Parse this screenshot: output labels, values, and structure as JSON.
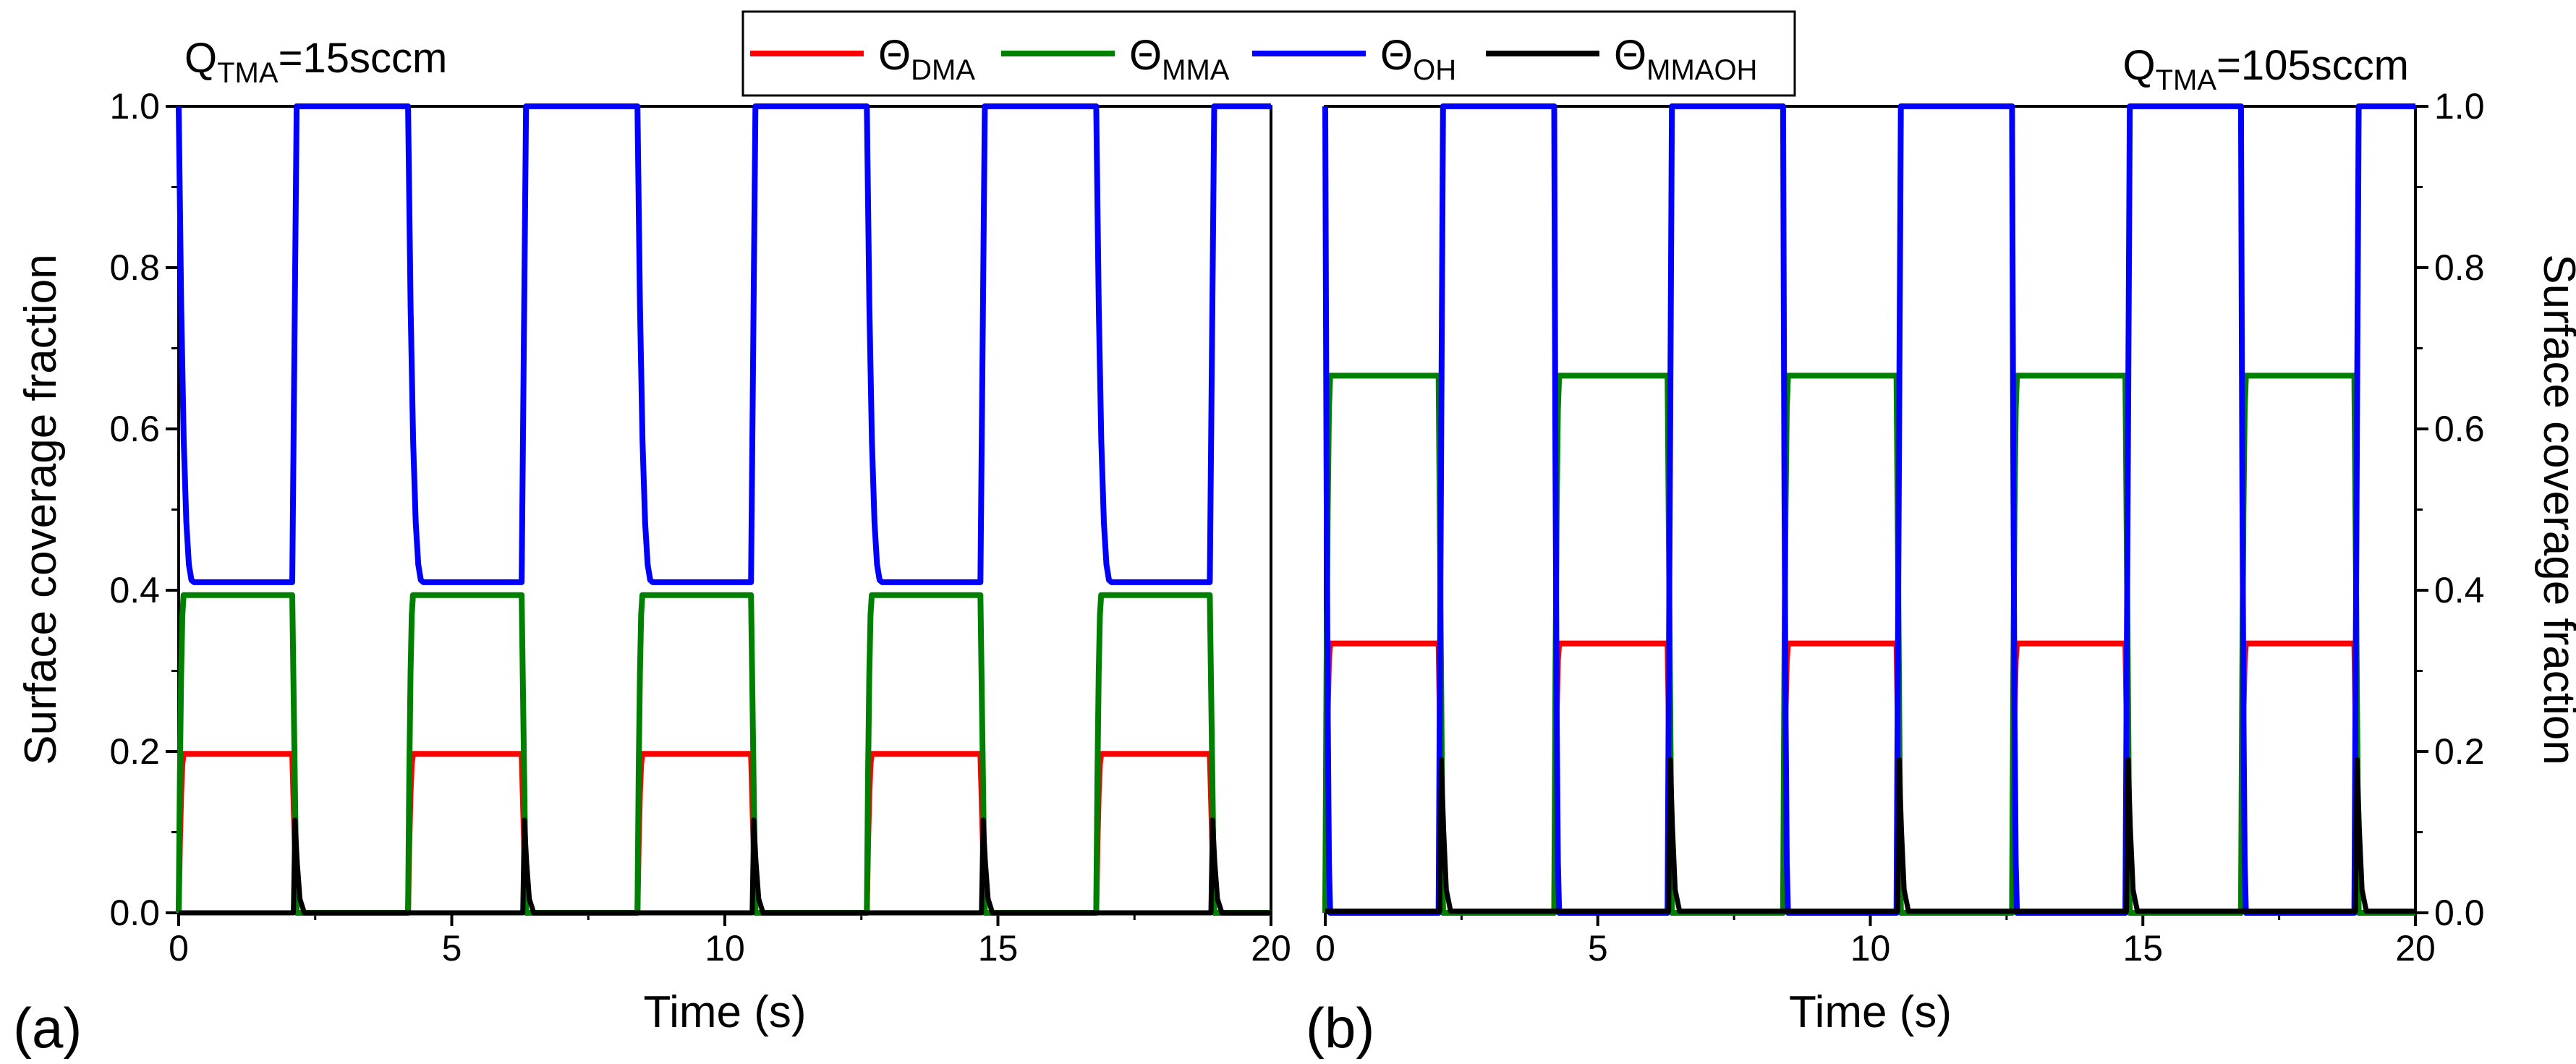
{
  "legend": [
    {
      "symbol": "Θ",
      "sub": "DMA",
      "color": "#ff0000"
    },
    {
      "symbol": "Θ",
      "sub": "MMA",
      "color": "#008000"
    },
    {
      "symbol": "Θ",
      "sub": "OH",
      "color": "#0000ff"
    },
    {
      "symbol": "Θ",
      "sub": "MMAOH",
      "color": "#000000"
    }
  ],
  "chart_data": [
    {
      "type": "line",
      "panel_label": "(a)",
      "annotation": {
        "main": "Q",
        "sub": "TMA",
        "rest": "=15sccm"
      },
      "xlabel": "Time (s)",
      "ylabel": "Surface coverage fraction",
      "ylabel_side": "left",
      "xlim": [
        0,
        20
      ],
      "ylim": [
        0,
        1.0
      ],
      "xticks": [
        "0",
        "5",
        "10",
        "15",
        "20"
      ],
      "yticks": [
        "0.0",
        "0.2",
        "0.4",
        "0.6",
        "0.8",
        "1.0"
      ],
      "cycle": {
        "period": 4.2,
        "tma_pulse": 2.1,
        "start_times": [
          0,
          4.2,
          8.4,
          12.6,
          16.8
        ]
      },
      "series": [
        {
          "name": "Θ_DMA",
          "color": "#ff0000",
          "pulse_level": 0.197,
          "purge_level": 0.0
        },
        {
          "name": "Θ_MMA",
          "color": "#008000",
          "pulse_level": 0.394,
          "purge_level": 0.0
        },
        {
          "name": "Θ_OH",
          "color": "#0000ff",
          "pulse_level": 0.41,
          "purge_level": 1.0
        },
        {
          "name": "Θ_MMAOH",
          "color": "#000000",
          "pulse_level": 0.0,
          "purge_level": 0.0,
          "spike_peak": 0.115
        }
      ]
    },
    {
      "type": "line",
      "panel_label": "(b)",
      "annotation": {
        "main": "Q",
        "sub": "TMA",
        "rest": "=105sccm"
      },
      "xlabel": "Time (s)",
      "ylabel": "Surface coverage fraction",
      "ylabel_side": "right",
      "xlim": [
        0,
        20
      ],
      "ylim": [
        0,
        1.0
      ],
      "xticks": [
        "0",
        "5",
        "10",
        "15",
        "20"
      ],
      "yticks": [
        "0.0",
        "0.2",
        "0.4",
        "0.6",
        "0.8",
        "1.0"
      ],
      "cycle": {
        "period": 4.2,
        "tma_pulse": 2.1,
        "start_times": [
          0,
          4.2,
          8.4,
          12.6,
          16.8
        ]
      },
      "series": [
        {
          "name": "Θ_DMA",
          "color": "#ff0000",
          "pulse_level": 0.334,
          "purge_level": 0.0
        },
        {
          "name": "Θ_MMA",
          "color": "#008000",
          "pulse_level": 0.666,
          "purge_level": 0.0
        },
        {
          "name": "Θ_OH",
          "color": "#0000ff",
          "pulse_level": 0.0,
          "purge_level": 1.0
        },
        {
          "name": "Θ_MMAOH",
          "color": "#000000",
          "pulse_level": 0.002,
          "purge_level": 0.002,
          "spike_peak": 0.19
        }
      ]
    }
  ]
}
